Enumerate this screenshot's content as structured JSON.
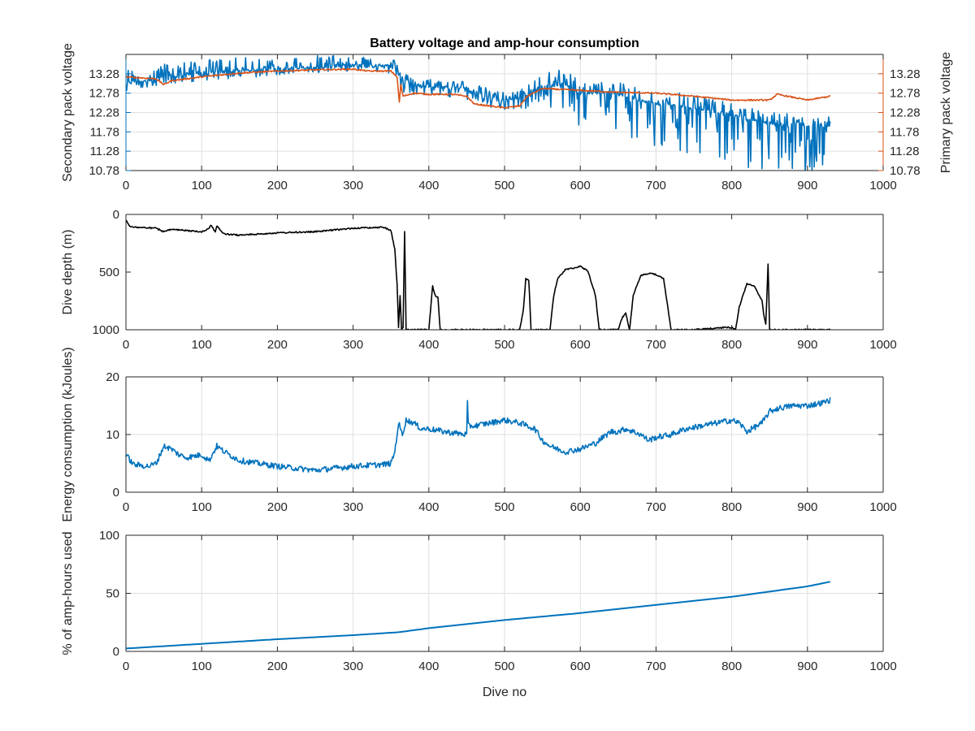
{
  "colors": {
    "blue": "#0072BD",
    "orange": "#D95319",
    "black": "#000000",
    "grid": "#dfdfdf",
    "axis": "#262626"
  },
  "chart_data": [
    {
      "type": "line",
      "title": "Battery voltage and amp-hour consumption",
      "xlabel": "",
      "ylabel": "Secondary pack voltage",
      "ylabel_right": "Primary pack voltage",
      "xlim": [
        0,
        1000
      ],
      "ylim": [
        10.78,
        13.78
      ],
      "x_ticks": [
        0,
        100,
        200,
        300,
        400,
        500,
        600,
        700,
        800,
        900,
        1000
      ],
      "y_ticks": [
        10.78,
        11.28,
        11.78,
        12.28,
        12.78,
        13.28
      ],
      "y_tick_labels": [
        "10.78",
        "11.28",
        "11.78",
        "12.28",
        "12.78",
        "13.28"
      ],
      "y_ticks_right": [
        10.78,
        11.28,
        11.78,
        12.28,
        12.78,
        13.28
      ],
      "y_tick_labels_right": [
        "10.78",
        "11.28",
        "11.78",
        "12.28",
        "12.78",
        "13.28"
      ],
      "grid": true,
      "series": [
        {
          "axis": "left",
          "color": "#0072BD",
          "noise": "spiky",
          "x": [
            0,
            20,
            50,
            100,
            150,
            200,
            250,
            300,
            340,
            360,
            363,
            366,
            380,
            400,
            450,
            470,
            480,
            500,
            520,
            550,
            580,
            600,
            650,
            700,
            750,
            800,
            850,
            900,
            930
          ],
          "y": [
            13.05,
            13.1,
            13.2,
            13.3,
            13.35,
            13.4,
            13.45,
            13.5,
            13.5,
            13.45,
            13.05,
            13.1,
            13.0,
            12.95,
            12.9,
            12.75,
            12.7,
            12.6,
            12.65,
            12.95,
            13.0,
            12.8,
            12.75,
            12.5,
            12.4,
            12.2,
            12.0,
            11.9,
            11.9
          ],
          "spike_up": [
            0.35,
            0.35,
            0.35,
            0.35,
            0.35,
            0.3,
            0.3,
            0.3,
            0.2,
            0.2,
            0.2,
            0.2,
            0.2,
            0.2,
            0.2,
            0.2,
            0.2,
            0.2,
            0.2,
            0.4,
            0.4,
            0.3,
            0.3,
            0.4,
            0.4,
            0.3,
            0.3,
            0.3,
            0.3
          ],
          "spike_down": [
            0.2,
            0.2,
            0.2,
            0.2,
            0.2,
            0.15,
            0.15,
            0.15,
            0.15,
            0.3,
            0.3,
            0.3,
            0.3,
            0.3,
            0.3,
            0.3,
            0.3,
            0.3,
            0.3,
            0.5,
            0.8,
            0.9,
            1.0,
            1.2,
            1.3,
            1.3,
            1.3,
            1.2,
            1.2
          ]
        },
        {
          "axis": "right",
          "color": "#D95319",
          "noise": "small",
          "x": [
            0,
            40,
            50,
            60,
            100,
            150,
            200,
            250,
            300,
            320,
            350,
            358,
            361,
            363,
            366,
            380,
            400,
            430,
            450,
            460,
            500,
            520,
            530,
            550,
            600,
            650,
            700,
            750,
            800,
            850,
            860,
            900,
            930
          ],
          "y": [
            13.2,
            13.15,
            13.0,
            13.1,
            13.2,
            13.3,
            13.35,
            13.38,
            13.4,
            13.35,
            13.35,
            13.2,
            12.55,
            13.0,
            12.7,
            12.78,
            12.75,
            12.75,
            12.7,
            12.5,
            12.4,
            12.45,
            12.7,
            12.9,
            12.85,
            12.8,
            12.78,
            12.7,
            12.6,
            12.6,
            12.75,
            12.6,
            12.7
          ]
        }
      ]
    },
    {
      "type": "line",
      "title": "",
      "xlabel": "",
      "ylabel": "Dive depth (m)",
      "xlim": [
        0,
        1000
      ],
      "ylim": [
        0,
        1000
      ],
      "y_reversed": true,
      "x_ticks": [
        0,
        100,
        200,
        300,
        400,
        500,
        600,
        700,
        800,
        900,
        1000
      ],
      "y_ticks": [
        0,
        500,
        1000
      ],
      "y_tick_labels": [
        "0",
        "500",
        "1000"
      ],
      "grid": false,
      "series": [
        {
          "axis": "left",
          "color": "#000000",
          "noise": "small",
          "x": [
            0,
            5,
            10,
            40,
            50,
            60,
            100,
            110,
            112,
            118,
            120,
            128,
            130,
            150,
            200,
            250,
            300,
            340,
            350,
            355,
            358,
            360,
            362,
            364,
            366,
            368,
            370,
            400,
            405,
            408,
            412,
            415,
            420,
            450,
            500,
            520,
            525,
            528,
            532,
            535,
            540,
            560,
            565,
            570,
            580,
            600,
            610,
            620,
            625,
            650,
            655,
            660,
            665,
            670,
            680,
            690,
            700,
            710,
            720,
            725,
            750,
            790,
            800,
            805,
            810,
            820,
            830,
            840,
            843,
            845,
            848,
            850,
            855,
            900,
            930
          ],
          "y": [
            50,
            100,
            110,
            120,
            150,
            130,
            150,
            120,
            90,
            150,
            100,
            160,
            170,
            180,
            160,
            150,
            120,
            110,
            140,
            300,
            600,
            980,
            700,
            1000,
            980,
            150,
            1000,
            1000,
            620,
            700,
            720,
            1000,
            1000,
            1000,
            1000,
            1000,
            820,
            560,
            570,
            1000,
            1000,
            1000,
            700,
            560,
            480,
            450,
            490,
            700,
            1000,
            1000,
            900,
            850,
            1000,
            700,
            530,
            510,
            520,
            560,
            1000,
            1000,
            1000,
            980,
            980,
            1000,
            800,
            600,
            620,
            750,
            900,
            950,
            430,
            1000,
            1000,
            1000,
            1000
          ]
        }
      ]
    },
    {
      "type": "line",
      "title": "",
      "xlabel": "",
      "ylabel": "Energy consumption (kJoules)",
      "xlim": [
        0,
        1000
      ],
      "ylim": [
        0,
        20
      ],
      "x_ticks": [
        0,
        100,
        200,
        300,
        400,
        500,
        600,
        700,
        800,
        900,
        1000
      ],
      "y_ticks": [
        0,
        10,
        20
      ],
      "y_tick_labels": [
        "0",
        "10",
        "20"
      ],
      "grid": true,
      "series": [
        {
          "axis": "left",
          "color": "#0072BD",
          "noise": "medium",
          "x": [
            0,
            10,
            30,
            40,
            50,
            60,
            70,
            80,
            100,
            110,
            120,
            130,
            150,
            200,
            250,
            300,
            340,
            350,
            355,
            360,
            365,
            370,
            380,
            390,
            400,
            420,
            450,
            451,
            452,
            460,
            480,
            500,
            520,
            540,
            550,
            560,
            580,
            600,
            620,
            640,
            650,
            660,
            680,
            690,
            700,
            720,
            740,
            760,
            780,
            800,
            810,
            820,
            840,
            850,
            860,
            880,
            900,
            920,
            930
          ],
          "y": [
            6.5,
            4.8,
            4.5,
            5.0,
            8.0,
            7.5,
            6.5,
            6.0,
            6.5,
            5.5,
            8.0,
            7.0,
            5.5,
            4.5,
            3.8,
            4.5,
            4.8,
            5.0,
            7.0,
            12.0,
            10.0,
            12.5,
            12.0,
            11.0,
            11.0,
            10.5,
            10.0,
            15.5,
            11.5,
            11.5,
            12.0,
            12.5,
            12.0,
            11.0,
            9.0,
            8.0,
            7.0,
            7.5,
            8.5,
            10.5,
            10.5,
            11.0,
            10.0,
            9.0,
            9.5,
            10.0,
            11.0,
            11.5,
            12.0,
            12.5,
            12.0,
            10.5,
            12.0,
            14.0,
            14.5,
            15.0,
            15.0,
            15.5,
            16.0
          ]
        }
      ]
    },
    {
      "type": "line",
      "title": "",
      "xlabel": "Dive no",
      "ylabel": "% of amp-hours used",
      "xlim": [
        0,
        1000
      ],
      "ylim": [
        0,
        100
      ],
      "x_ticks": [
        0,
        100,
        200,
        300,
        400,
        500,
        600,
        700,
        800,
        900,
        1000
      ],
      "y_ticks": [
        0,
        50,
        100
      ],
      "y_tick_labels": [
        "0",
        "50",
        "100"
      ],
      "grid": true,
      "series": [
        {
          "axis": "left",
          "color": "#0072BD",
          "noise": "none",
          "x": [
            0,
            100,
            200,
            300,
            360,
            400,
            500,
            600,
            700,
            800,
            900,
            930
          ],
          "y": [
            2.5,
            6.5,
            10.5,
            14.0,
            16.5,
            20.0,
            27.0,
            33.0,
            40.0,
            47.0,
            56.0,
            60.0
          ]
        }
      ]
    }
  ]
}
